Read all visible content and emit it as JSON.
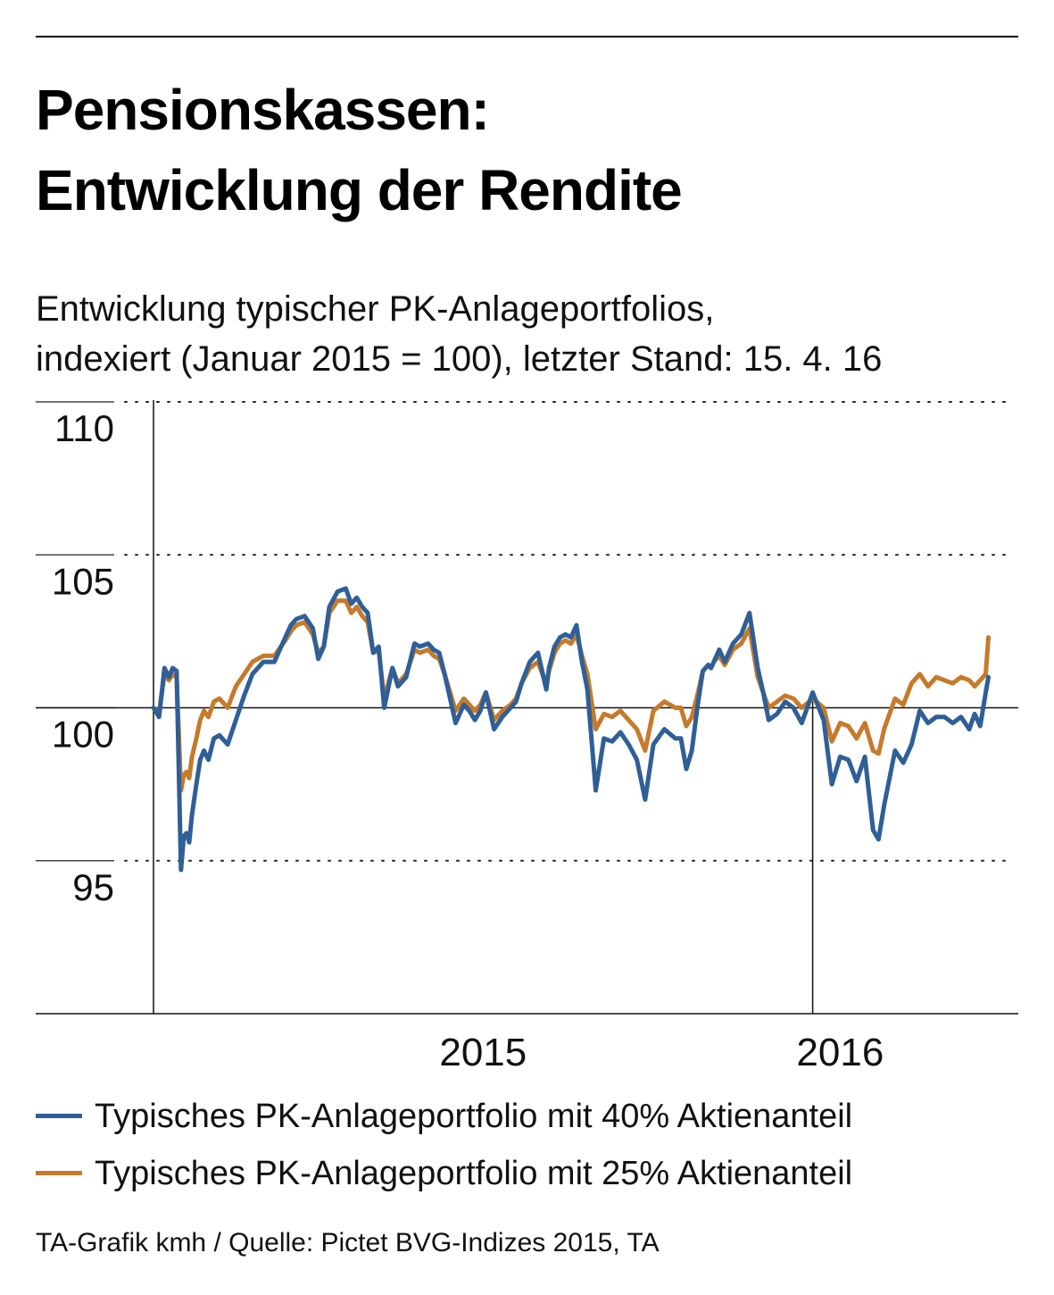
{
  "header": {
    "title_line1": "Pensionskassen:",
    "title_line2": "Entwicklung der Rendite",
    "subtitle_line1": "Entwicklung typischer PK-Anlageportfolios,",
    "subtitle_line2": "indexiert (Januar 2015 = 100), letzter Stand: 15. 4. 16"
  },
  "legend": [
    {
      "label": "Typisches PK-Anlageportfolio mit 40% Aktienanteil",
      "color": "#2f5f97"
    },
    {
      "label": "Typisches PK-Anlageportfolio mit 25% Aktienanteil",
      "color": "#c67a2b"
    }
  ],
  "footer": {
    "source": "TA-Grafik kmh / Quelle: Pictet BVG-Indizes 2015, TA"
  },
  "chart_data": {
    "type": "line",
    "title": "Pensionskassen: Entwicklung der Rendite",
    "subtitle": "Entwicklung typischer PK-Anlageportfolios, indexiert (Januar 2015 = 100), letzter Stand: 15. 4. 16",
    "xlabel": "",
    "ylabel": "",
    "x_unit": "months since 1 Jan 2015",
    "xlim": [
      0,
      15.5
    ],
    "ylim": [
      90,
      110
    ],
    "yticks": [
      95,
      100,
      105,
      110
    ],
    "ytick_labels": [
      "95",
      "100",
      "105",
      "110"
    ],
    "xticks": [
      {
        "label": "2015",
        "x": 6
      },
      {
        "label": "2016",
        "x": 12.5
      }
    ],
    "reference_line": 100,
    "year_boundary": 12,
    "grid": "dotted horizontal at 95, 105, 110",
    "series": [
      {
        "name": "Typisches PK-Anlageportfolio mit 40% Aktienanteil",
        "color": "#2f5f97",
        "x": [
          0,
          0.1,
          0.2,
          0.28,
          0.35,
          0.42,
          0.5,
          0.55,
          0.6,
          0.65,
          0.7,
          0.78,
          0.85,
          0.92,
          1.0,
          1.1,
          1.2,
          1.35,
          1.5,
          1.65,
          1.8,
          2.0,
          2.2,
          2.4,
          2.5,
          2.6,
          2.75,
          2.9,
          3.0,
          3.1,
          3.2,
          3.35,
          3.5,
          3.6,
          3.7,
          3.8,
          3.9,
          4.0,
          4.1,
          4.2,
          4.35,
          4.45,
          4.6,
          4.75,
          4.85,
          5.0,
          5.1,
          5.2,
          5.3,
          5.5,
          5.65,
          5.75,
          5.85,
          5.95,
          6.05,
          6.2,
          6.35,
          6.5,
          6.6,
          6.7,
          6.85,
          7.0,
          7.1,
          7.15,
          7.2,
          7.3,
          7.4,
          7.5,
          7.6,
          7.7,
          7.8,
          7.9,
          8.05,
          8.2,
          8.35,
          8.5,
          8.65,
          8.8,
          8.95,
          9.1,
          9.3,
          9.5,
          9.6,
          9.7,
          9.8,
          9.9,
          10.0,
          10.1,
          10.15,
          10.2,
          10.3,
          10.4,
          10.55,
          10.7,
          10.85,
          11.0,
          11.1,
          11.2,
          11.35,
          11.5,
          11.65,
          11.8,
          12.0,
          12.2,
          12.35,
          12.5,
          12.65,
          12.8,
          12.95,
          13.1,
          13.2,
          13.3,
          13.4,
          13.5,
          13.65,
          13.8,
          13.95,
          14.1,
          14.25,
          14.4,
          14.55,
          14.7,
          14.85,
          14.95,
          15.05,
          15.15,
          15.2
        ],
        "values": [
          100.0,
          99.7,
          101.3,
          101.0,
          101.3,
          101.2,
          94.7,
          95.8,
          95.9,
          95.6,
          96.5,
          97.5,
          98.3,
          98.6,
          98.3,
          99.0,
          99.1,
          98.8,
          99.6,
          100.4,
          101.1,
          101.5,
          101.5,
          102.3,
          102.7,
          102.9,
          103.0,
          102.6,
          101.6,
          102.0,
          103.3,
          103.8,
          103.9,
          103.4,
          103.6,
          103.3,
          103.1,
          101.8,
          102.0,
          100.0,
          101.3,
          100.7,
          101.0,
          102.1,
          102.0,
          102.1,
          101.9,
          101.8,
          101.1,
          99.5,
          100.1,
          99.9,
          99.6,
          99.9,
          100.5,
          99.3,
          99.7,
          100.0,
          100.2,
          100.8,
          101.5,
          101.8,
          101.0,
          100.6,
          101.3,
          102.0,
          102.3,
          102.4,
          102.3,
          102.7,
          101.5,
          100.6,
          97.3,
          99.0,
          98.9,
          99.2,
          98.8,
          98.3,
          97.0,
          98.8,
          99.3,
          99.0,
          99.0,
          98.0,
          98.6,
          100.0,
          101.2,
          101.4,
          101.3,
          101.5,
          101.9,
          101.5,
          102.1,
          102.4,
          103.1,
          101.3,
          100.5,
          99.6,
          99.8,
          100.2,
          100.0,
          99.5,
          100.5,
          99.6,
          97.5,
          98.4,
          98.3,
          97.6,
          98.4,
          96.0,
          95.7,
          96.8,
          97.7,
          98.6,
          98.2,
          98.8,
          99.9,
          99.5,
          99.7,
          99.7,
          99.5,
          99.7,
          99.3,
          99.8,
          99.4,
          100.5,
          101.0
        ]
      },
      {
        "name": "Typisches PK-Anlageportfolio mit 25% Aktienanteil",
        "color": "#c67a2b",
        "x": [
          0,
          0.1,
          0.2,
          0.28,
          0.35,
          0.42,
          0.5,
          0.55,
          0.6,
          0.65,
          0.7,
          0.78,
          0.85,
          0.92,
          1.0,
          1.1,
          1.2,
          1.35,
          1.5,
          1.65,
          1.8,
          2.0,
          2.2,
          2.4,
          2.5,
          2.6,
          2.75,
          2.9,
          3.0,
          3.1,
          3.2,
          3.35,
          3.5,
          3.6,
          3.7,
          3.8,
          3.9,
          4.0,
          4.1,
          4.2,
          4.35,
          4.45,
          4.6,
          4.75,
          4.85,
          5.0,
          5.1,
          5.2,
          5.3,
          5.5,
          5.65,
          5.75,
          5.85,
          5.95,
          6.05,
          6.2,
          6.35,
          6.5,
          6.6,
          6.7,
          6.85,
          7.0,
          7.1,
          7.15,
          7.2,
          7.3,
          7.4,
          7.5,
          7.6,
          7.7,
          7.8,
          7.9,
          8.05,
          8.2,
          8.35,
          8.5,
          8.65,
          8.8,
          8.95,
          9.1,
          9.3,
          9.5,
          9.6,
          9.7,
          9.8,
          9.9,
          10.0,
          10.1,
          10.15,
          10.2,
          10.3,
          10.4,
          10.55,
          10.7,
          10.85,
          11.0,
          11.1,
          11.2,
          11.35,
          11.5,
          11.65,
          11.8,
          12.0,
          12.2,
          12.35,
          12.5,
          12.65,
          12.8,
          12.95,
          13.1,
          13.2,
          13.3,
          13.4,
          13.5,
          13.65,
          13.8,
          13.95,
          14.1,
          14.25,
          14.4,
          14.55,
          14.7,
          14.85,
          14.95,
          15.05,
          15.15,
          15.2
        ],
        "values": [
          100.0,
          99.8,
          101.1,
          100.9,
          101.1,
          101.0,
          97.3,
          97.8,
          97.9,
          97.7,
          98.4,
          99.0,
          99.6,
          99.9,
          99.7,
          100.2,
          100.3,
          100.0,
          100.7,
          101.1,
          101.5,
          101.7,
          101.7,
          102.2,
          102.5,
          102.7,
          102.8,
          102.4,
          101.8,
          102.0,
          103.1,
          103.5,
          103.5,
          103.1,
          103.3,
          103.0,
          102.8,
          101.8,
          101.9,
          100.3,
          101.3,
          100.8,
          101.1,
          101.9,
          101.8,
          101.9,
          101.7,
          101.6,
          101.1,
          99.9,
          100.3,
          100.1,
          99.9,
          100.1,
          100.5,
          99.6,
          99.9,
          100.1,
          100.3,
          100.8,
          101.3,
          101.5,
          101.0,
          100.7,
          101.2,
          101.8,
          102.1,
          102.2,
          102.1,
          102.4,
          101.7,
          101.1,
          99.3,
          99.8,
          99.7,
          99.9,
          99.6,
          99.3,
          98.6,
          99.9,
          100.2,
          100.0,
          100.0,
          99.4,
          99.7,
          100.4,
          101.2,
          101.4,
          101.3,
          101.5,
          101.7,
          101.4,
          101.9,
          102.1,
          102.6,
          101.0,
          100.5,
          100.0,
          100.2,
          100.4,
          100.3,
          100.0,
          100.3,
          100.0,
          98.9,
          99.5,
          99.4,
          99.0,
          99.5,
          98.6,
          98.5,
          99.3,
          99.8,
          100.3,
          100.1,
          100.8,
          101.1,
          100.7,
          101.0,
          100.9,
          100.8,
          101.0,
          100.9,
          100.7,
          100.9,
          101.1,
          102.3
        ]
      }
    ]
  }
}
